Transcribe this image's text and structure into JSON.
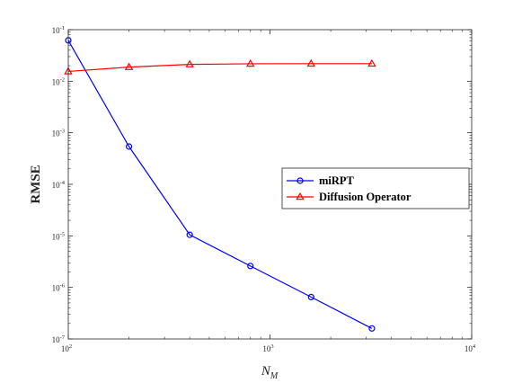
{
  "chart_data": {
    "type": "line",
    "xlabel": "N",
    "xlabel_sub": "M",
    "ylabel": "RMSE",
    "xscale": "log",
    "yscale": "log",
    "xlim": [
      100,
      10000
    ],
    "ylim": [
      1e-07,
      0.1
    ],
    "xticks": [
      {
        "value": 100,
        "mantissa": "10",
        "exp": "2"
      },
      {
        "value": 1000,
        "mantissa": "10",
        "exp": "3"
      },
      {
        "value": 10000,
        "mantissa": "10",
        "exp": "4"
      }
    ],
    "yticks": [
      {
        "value": 1e-07,
        "mantissa": "10",
        "exp": "-7"
      },
      {
        "value": 1e-06,
        "mantissa": "10",
        "exp": "-6"
      },
      {
        "value": 1e-05,
        "mantissa": "10",
        "exp": "-5"
      },
      {
        "value": 0.0001,
        "mantissa": "10",
        "exp": "-4"
      },
      {
        "value": 0.001,
        "mantissa": "10",
        "exp": "-3"
      },
      {
        "value": 0.01,
        "mantissa": "10",
        "exp": "-2"
      },
      {
        "value": 0.1,
        "mantissa": "10",
        "exp": "-1"
      }
    ],
    "grid": false,
    "legend_position": "center-right",
    "series": [
      {
        "name": "miRPT",
        "color": "#0000ff",
        "marker": "circle",
        "x": [
          100,
          200,
          400,
          800,
          1600,
          3200
        ],
        "y": [
          0.062,
          0.00054,
          1.05e-05,
          2.6e-06,
          6.5e-07,
          1.6e-07
        ]
      },
      {
        "name": "Diffusion Operator",
        "color": "#ff0000",
        "marker": "triangle",
        "x": [
          100,
          200,
          400,
          800,
          1600,
          3200
        ],
        "y": [
          0.0155,
          0.0188,
          0.0212,
          0.0218,
          0.0219,
          0.0219
        ]
      }
    ]
  }
}
